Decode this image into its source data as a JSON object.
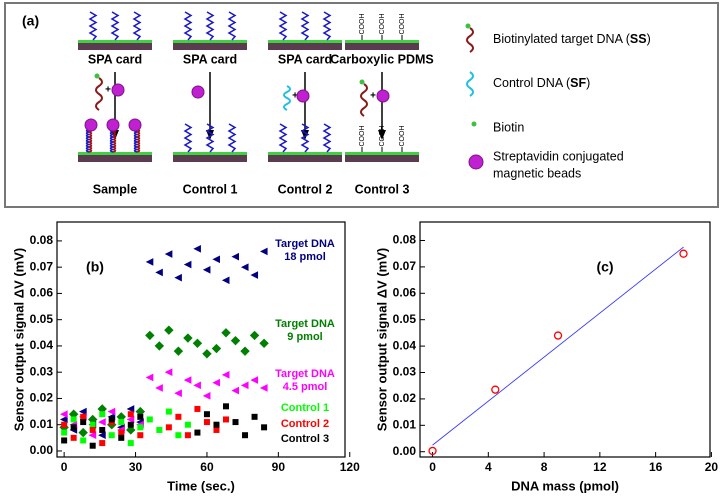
{
  "diagram": {
    "panel_label": "(a)",
    "top_labels": [
      "SPA card",
      "SPA card",
      "SPA card",
      "Carboxylic PDMS"
    ],
    "bottom_labels": [
      "Sample",
      "Control 1",
      "Control 2",
      "Control 3"
    ],
    "plus": "+",
    "cooh": "COOH",
    "legend": {
      "target": [
        "Biotinylated target DNA (",
        "SS",
        ")"
      ],
      "control": [
        "Control DNA (",
        "SF",
        ")"
      ],
      "biotin": "Biotin",
      "beads": [
        "Streptavidin conjugated",
        "magnetic beads"
      ]
    }
  },
  "chart_data": [
    {
      "type": "scatter",
      "label": "(b)",
      "xlabel": "Time (sec.)",
      "ylabel": "Sensor output signal ΔV (mV)",
      "xlim": [
        -3,
        118
      ],
      "xticks": [
        0,
        30,
        60,
        90,
        120
      ],
      "ylim": [
        -0.0023,
        0.0872
      ],
      "yticks": [
        {
          "value": 0,
          "label": "0.00"
        },
        0.01,
        0.02,
        0.03,
        0.04,
        0.05,
        0.06,
        0.07,
        0.08
      ],
      "x": [
        0,
        4,
        8,
        12,
        16,
        20,
        24,
        28,
        32,
        36,
        40,
        44,
        48,
        52,
        56,
        60,
        64,
        68,
        72,
        76,
        80,
        84
      ],
      "series": [
        {
          "name": "Target DNA 18 pmol",
          "color": "#000080",
          "values": [
            0.012,
            0.008,
            0.015,
            0.01,
            0.006,
            0.013,
            0.009,
            0.016,
            0.011,
            0.072,
            0.068,
            0.075,
            0.066,
            0.071,
            0.077,
            0.069,
            0.073,
            0.065,
            0.074,
            0.07,
            0.067,
            0.076
          ]
        },
        {
          "name": "Target DNA 9 pmol",
          "color": "#008000",
          "values": [
            0.009,
            0.014,
            0.007,
            0.012,
            0.016,
            0.01,
            0.013,
            0.008,
            0.015,
            0.044,
            0.04,
            0.046,
            0.038,
            0.043,
            0.041,
            0.037,
            0.039,
            0.045,
            0.042,
            0.038,
            0.044,
            0.041
          ]
        },
        {
          "name": "Target DNA 4.5 pmol",
          "color": "#ff00ff",
          "values": [
            0.014,
            0.01,
            0.013,
            0.006,
            0.011,
            0.015,
            0.008,
            0.012,
            0.01,
            0.028,
            0.024,
            0.03,
            0.022,
            0.027,
            0.025,
            0.021,
            0.026,
            0.029,
            0.023,
            0.025,
            0.027,
            0.024
          ]
        },
        {
          "name": "Control 1",
          "color": "#00ff00",
          "values": [
            0.007,
            0.012,
            0.004,
            0.01,
            0.014,
            0.006,
            0.011,
            0.003,
            0.009,
            0.012,
            0.008,
            0.015,
            0.006,
            0.01,
            null,
            null,
            null,
            null,
            null,
            null,
            null,
            null
          ]
        },
        {
          "name": "Control 2",
          "color": "#ff0000",
          "values": [
            0.01,
            0.005,
            0.013,
            0.008,
            0.003,
            0.011,
            0.007,
            0.014,
            0.006,
            null,
            null,
            0.009,
            0.013,
            0.006,
            0.016,
            0.011,
            0.008,
            0.012,
            null,
            null,
            null,
            null
          ]
        },
        {
          "name": "Control 3",
          "color": "#000000",
          "values": [
            0.004,
            0.009,
            0.011,
            0.002,
            0.008,
            0.012,
            0.005,
            0.01,
            0.013,
            null,
            null,
            null,
            null,
            null,
            0.007,
            0.014,
            0.01,
            0.017,
            0.011,
            0.006,
            0.013,
            0.009
          ]
        }
      ]
    },
    {
      "type": "scatter",
      "label": "(c)",
      "xlabel": "DNA mass (pmol)",
      "ylabel": "Sensor output signal ΔV (mV)",
      "xlim": [
        -0.9,
        19.9
      ],
      "xticks": [
        0,
        4,
        8,
        12,
        16,
        20
      ],
      "ylim": [
        -0.002,
        0.087
      ],
      "yticks": [
        {
          "value": 0,
          "label": "0.00"
        },
        0.01,
        0.02,
        0.03,
        0.04,
        0.05,
        0.06,
        0.07,
        0.08
      ],
      "series": [
        {
          "mode": "markers",
          "color": "#ff0000",
          "x": [
            0,
            4.5,
            9,
            18
          ],
          "values": [
            0.0003,
            0.0235,
            0.044,
            0.075
          ]
        },
        {
          "mode": "line",
          "color": "#3a3aff",
          "x": [
            0,
            18
          ],
          "values": [
            0.0025,
            0.0775
          ]
        }
      ]
    }
  ]
}
